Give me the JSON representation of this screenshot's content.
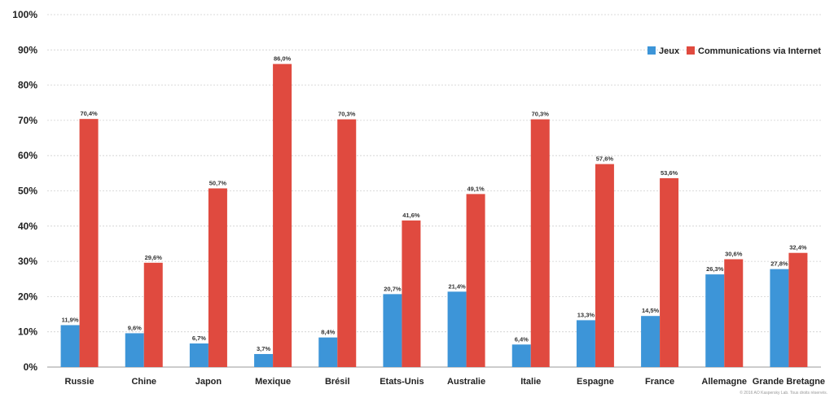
{
  "chart_data": {
    "type": "bar",
    "title": "",
    "xlabel": "",
    "ylabel": "",
    "ylim": [
      0,
      100
    ],
    "yticks": [
      0,
      10,
      20,
      30,
      40,
      50,
      60,
      70,
      80,
      90,
      100
    ],
    "ytick_suffix": "%",
    "grid": true,
    "legend_position": "top-right",
    "categories": [
      "Russie",
      "Chine",
      "Japon",
      "Mexique",
      "Brésil",
      "Etats-Unis",
      "Australie",
      "Italie",
      "Espagne",
      "France",
      "Allemagne",
      "Grande Bretagne"
    ],
    "series": [
      {
        "name": "Jeux",
        "color": "#3d95d8",
        "values": [
          11.9,
          9.6,
          6.7,
          3.7,
          8.4,
          20.7,
          21.4,
          6.4,
          13.3,
          14.5,
          26.3,
          27.8
        ],
        "labels": [
          "11,9%",
          "9,6%",
          "6,7%",
          "3,7%",
          "8,4%",
          "20,7%",
          "21,4%",
          "6,4%",
          "13,3%",
          "14,5%",
          "26,3%",
          "27,8%"
        ]
      },
      {
        "name": "Communications via Internet",
        "color": "#e04a3f",
        "values": [
          70.4,
          29.6,
          50.7,
          86.0,
          70.3,
          41.6,
          49.1,
          70.3,
          57.6,
          53.6,
          30.6,
          32.4
        ],
        "labels": [
          "70,4%",
          "29,6%",
          "50,7%",
          "86,0%",
          "70,3%",
          "41,6%",
          "49,1%",
          "70,3%",
          "57,6%",
          "53,6%",
          "30,6%",
          "32,4%"
        ]
      }
    ]
  },
  "footer": {
    "copyright": "© 2016 AO Kaspersky Lab. Tous droits réservés."
  }
}
